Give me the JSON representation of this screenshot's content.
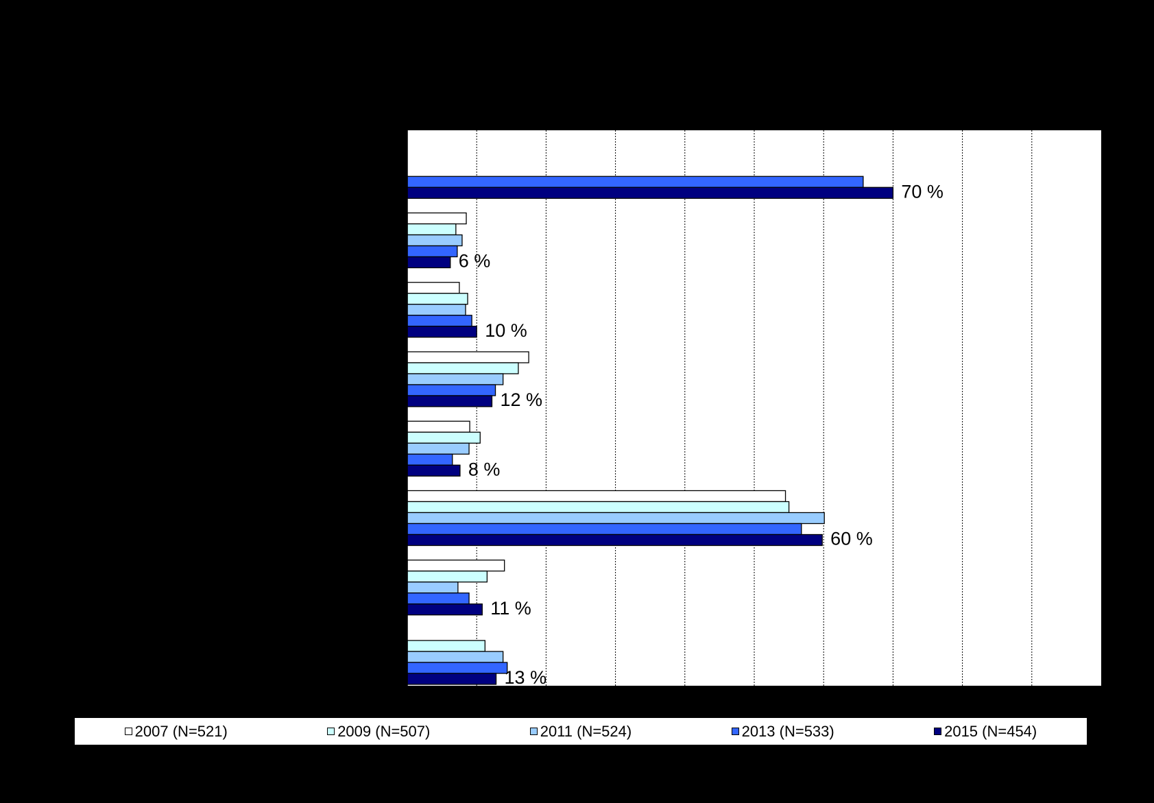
{
  "chart_data": {
    "type": "bar",
    "orientation": "horizontal",
    "grid": true,
    "legend_position": "bottom",
    "xlim": [
      0,
      100
    ],
    "categories": [
      "",
      "",
      "",
      "",
      "",
      "",
      "",
      ""
    ],
    "series": [
      {
        "name": "2007 (N=521)",
        "color": "#ffffff",
        "values": [
          null,
          8.5,
          7.5,
          17.5,
          9,
          54.5,
          14,
          null
        ]
      },
      {
        "name": "2009 (N=507)",
        "color": "#ccffff",
        "values": [
          null,
          7,
          8.7,
          16,
          10.5,
          55,
          11.5,
          11.2
        ]
      },
      {
        "name": "2011 (N=524)",
        "color": "#99ccff",
        "values": [
          null,
          7.9,
          8.4,
          13.8,
          8.9,
          60.1,
          7.3,
          13.8
        ]
      },
      {
        "name": "2013 (N=533)",
        "color": "#3366ff",
        "values": [
          65.7,
          7.2,
          9.3,
          12.7,
          6.5,
          56.8,
          8.9,
          14.4
        ]
      },
      {
        "name": "2015 (N=454)",
        "color": "#000080",
        "values": [
          70,
          6.2,
          10,
          12.2,
          7.6,
          59.8,
          10.8,
          12.8
        ]
      }
    ],
    "data_labels": [
      "70 %",
      "6 %",
      "10 %",
      "12 %",
      "8 %",
      "60 %",
      "11 %",
      "13 %"
    ]
  }
}
